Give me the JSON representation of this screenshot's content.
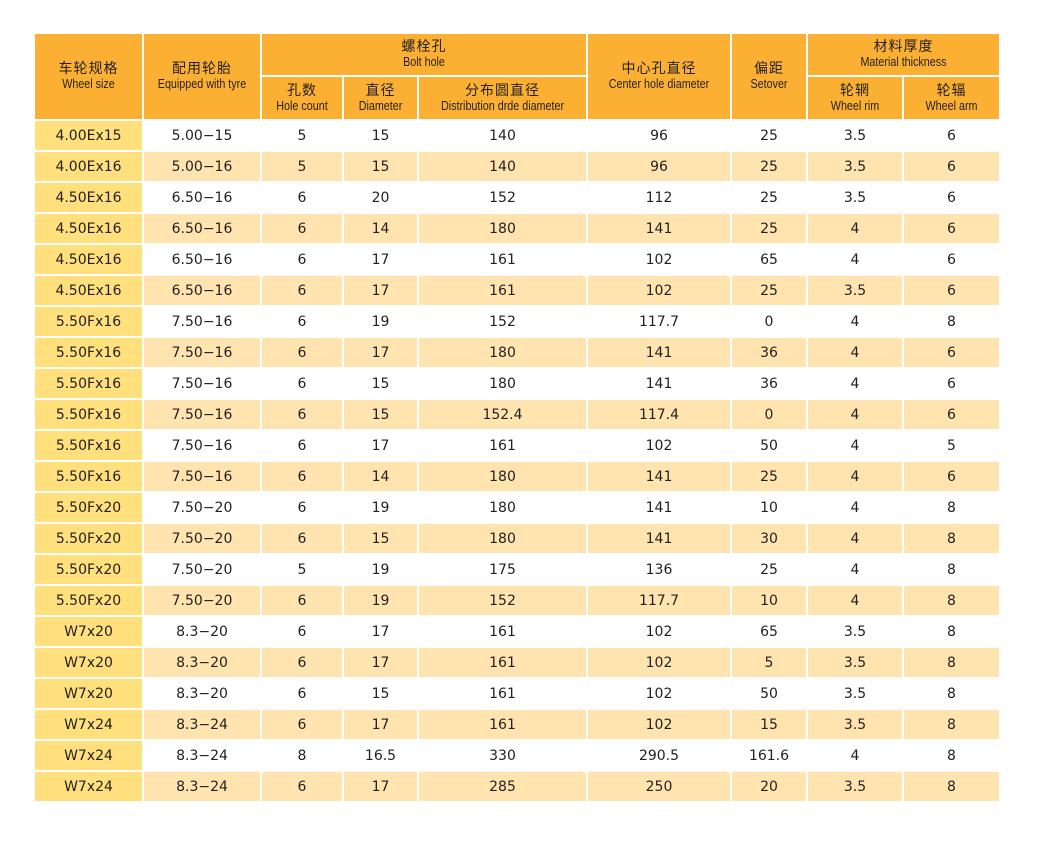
{
  "header": {
    "wheel_size": {
      "zh": "车轮规格",
      "en": "Wheel size"
    },
    "tyre": {
      "zh": "配用轮胎",
      "en": "Equipped with tyre"
    },
    "bolt_hole": {
      "zh": "螺栓孔",
      "en": "Bolt hole"
    },
    "hole_count": {
      "zh": "孔数",
      "en": "Hole count"
    },
    "diameter": {
      "zh": "直径",
      "en": "Diameter"
    },
    "pcd": {
      "zh": "分布圆直径",
      "en": "Distribution drde diameter"
    },
    "center_hole": {
      "zh": "中心孔直径",
      "en": "Center hole diameter"
    },
    "setover": {
      "zh": "偏距",
      "en": "Setover"
    },
    "material": {
      "zh": "材料厚度",
      "en": "Material thickness"
    },
    "rim": {
      "zh": "轮辋",
      "en": "Wheel rim"
    },
    "arm": {
      "zh": "轮辐",
      "en": "Wheel arm"
    }
  },
  "colors": {
    "header": "#fbb034",
    "first_col": "#ffe07c",
    "stripe": "#ffe4b0",
    "white": "#ffffff"
  },
  "rows": [
    [
      "4.00Ex15",
      "5.00−15",
      "5",
      "15",
      "140",
      "96",
      "25",
      "3.5",
      "6"
    ],
    [
      "4.00Ex16",
      "5.00−16",
      "5",
      "15",
      "140",
      "96",
      "25",
      "3.5",
      "6"
    ],
    [
      "4.50Ex16",
      "6.50−16",
      "6",
      "20",
      "152",
      "112",
      "25",
      "3.5",
      "6"
    ],
    [
      "4.50Ex16",
      "6.50−16",
      "6",
      "14",
      "180",
      "141",
      "25",
      "4",
      "6"
    ],
    [
      "4.50Ex16",
      "6.50−16",
      "6",
      "17",
      "161",
      "102",
      "65",
      "4",
      "6"
    ],
    [
      "4.50Ex16",
      "6.50−16",
      "6",
      "17",
      "161",
      "102",
      "25",
      "3.5",
      "6"
    ],
    [
      "5.50Fx16",
      "7.50−16",
      "6",
      "19",
      "152",
      "117.7",
      "0",
      "4",
      "8"
    ],
    [
      "5.50Fx16",
      "7.50−16",
      "6",
      "17",
      "180",
      "141",
      "36",
      "4",
      "6"
    ],
    [
      "5.50Fx16",
      "7.50−16",
      "6",
      "15",
      "180",
      "141",
      "36",
      "4",
      "6"
    ],
    [
      "5.50Fx16",
      "7.50−16",
      "6",
      "15",
      "152.4",
      "117.4",
      "0",
      "4",
      "6"
    ],
    [
      "5.50Fx16",
      "7.50−16",
      "6",
      "17",
      "161",
      "102",
      "50",
      "4",
      "5"
    ],
    [
      "5.50Fx16",
      "7.50−16",
      "6",
      "14",
      "180",
      "141",
      "25",
      "4",
      "6"
    ],
    [
      "5.50Fx20",
      "7.50−20",
      "6",
      "19",
      "180",
      "141",
      "10",
      "4",
      "8"
    ],
    [
      "5.50Fx20",
      "7.50−20",
      "6",
      "15",
      "180",
      "141",
      "30",
      "4",
      "8"
    ],
    [
      "5.50Fx20",
      "7.50−20",
      "5",
      "19",
      "175",
      "136",
      "25",
      "4",
      "8"
    ],
    [
      "5.50Fx20",
      "7.50−20",
      "6",
      "19",
      "152",
      "117.7",
      "10",
      "4",
      "8"
    ],
    [
      "W7x20",
      "8.3−20",
      "6",
      "17",
      "161",
      "102",
      "65",
      "3.5",
      "8"
    ],
    [
      "W7x20",
      "8.3−20",
      "6",
      "17",
      "161",
      "102",
      "5",
      "3.5",
      "8"
    ],
    [
      "W7x20",
      "8.3−20",
      "6",
      "15",
      "161",
      "102",
      "50",
      "3.5",
      "8"
    ],
    [
      "W7x24",
      "8.3−24",
      "6",
      "17",
      "161",
      "102",
      "15",
      "3.5",
      "8"
    ],
    [
      "W7x24",
      "8.3−24",
      "8",
      "16.5",
      "330",
      "290.5",
      "161.6",
      "4",
      "8"
    ],
    [
      "W7x24",
      "8.3−24",
      "6",
      "17",
      "285",
      "250",
      "20",
      "3.5",
      "8"
    ]
  ]
}
